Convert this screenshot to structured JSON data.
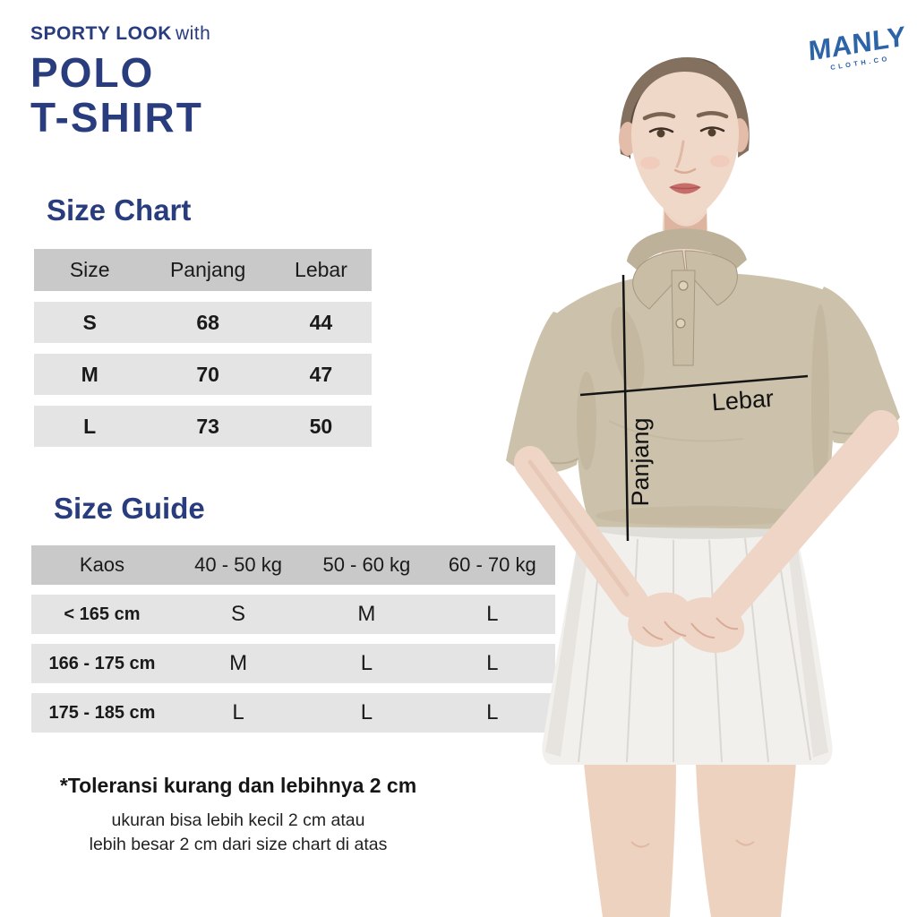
{
  "header": {
    "tagline_bold": "SPORTY LOOK",
    "tagline_light": "with",
    "title_line1": "POLO",
    "title_line2": "T-SHIRT"
  },
  "brand": {
    "name": "MANLY",
    "subtitle": "CLOTH.CO"
  },
  "size_chart": {
    "heading": "Size Chart",
    "table": {
      "columns": [
        "Size",
        "Panjang",
        "Lebar"
      ],
      "rows": [
        [
          "S",
          "68",
          "44"
        ],
        [
          "M",
          "70",
          "47"
        ],
        [
          "L",
          "73",
          "50"
        ]
      ]
    }
  },
  "size_guide": {
    "heading": "Size Guide",
    "table": {
      "columns": [
        "Kaos",
        "40 - 50 kg",
        "50 - 60 kg",
        "60 - 70 kg"
      ],
      "rows": [
        [
          "< 165 cm",
          "S",
          "M",
          "L"
        ],
        [
          "166 - 175 cm",
          "M",
          "L",
          "L"
        ],
        [
          "175 - 185 cm",
          "L",
          "L",
          "L"
        ]
      ]
    }
  },
  "notes": {
    "tolerance_bold": "*Toleransi kurang dan lebihnya 2 cm",
    "line1": "ukuran bisa lebih kecil 2 cm atau",
    "line2": "lebih besar 2 cm dari size chart di atas"
  },
  "measurements": {
    "width_label": "Lebar",
    "length_label": "Panjang"
  },
  "colors": {
    "heading_navy": "#283c7e",
    "brand_blue": "#2d64a8",
    "table_header_gray": "#c9c9c9",
    "table_row_gray": "#e4e4e4",
    "polo_beige": "#ccc1aa",
    "skirt_white": "#f2f0ed",
    "annotation_black": "#151515"
  }
}
